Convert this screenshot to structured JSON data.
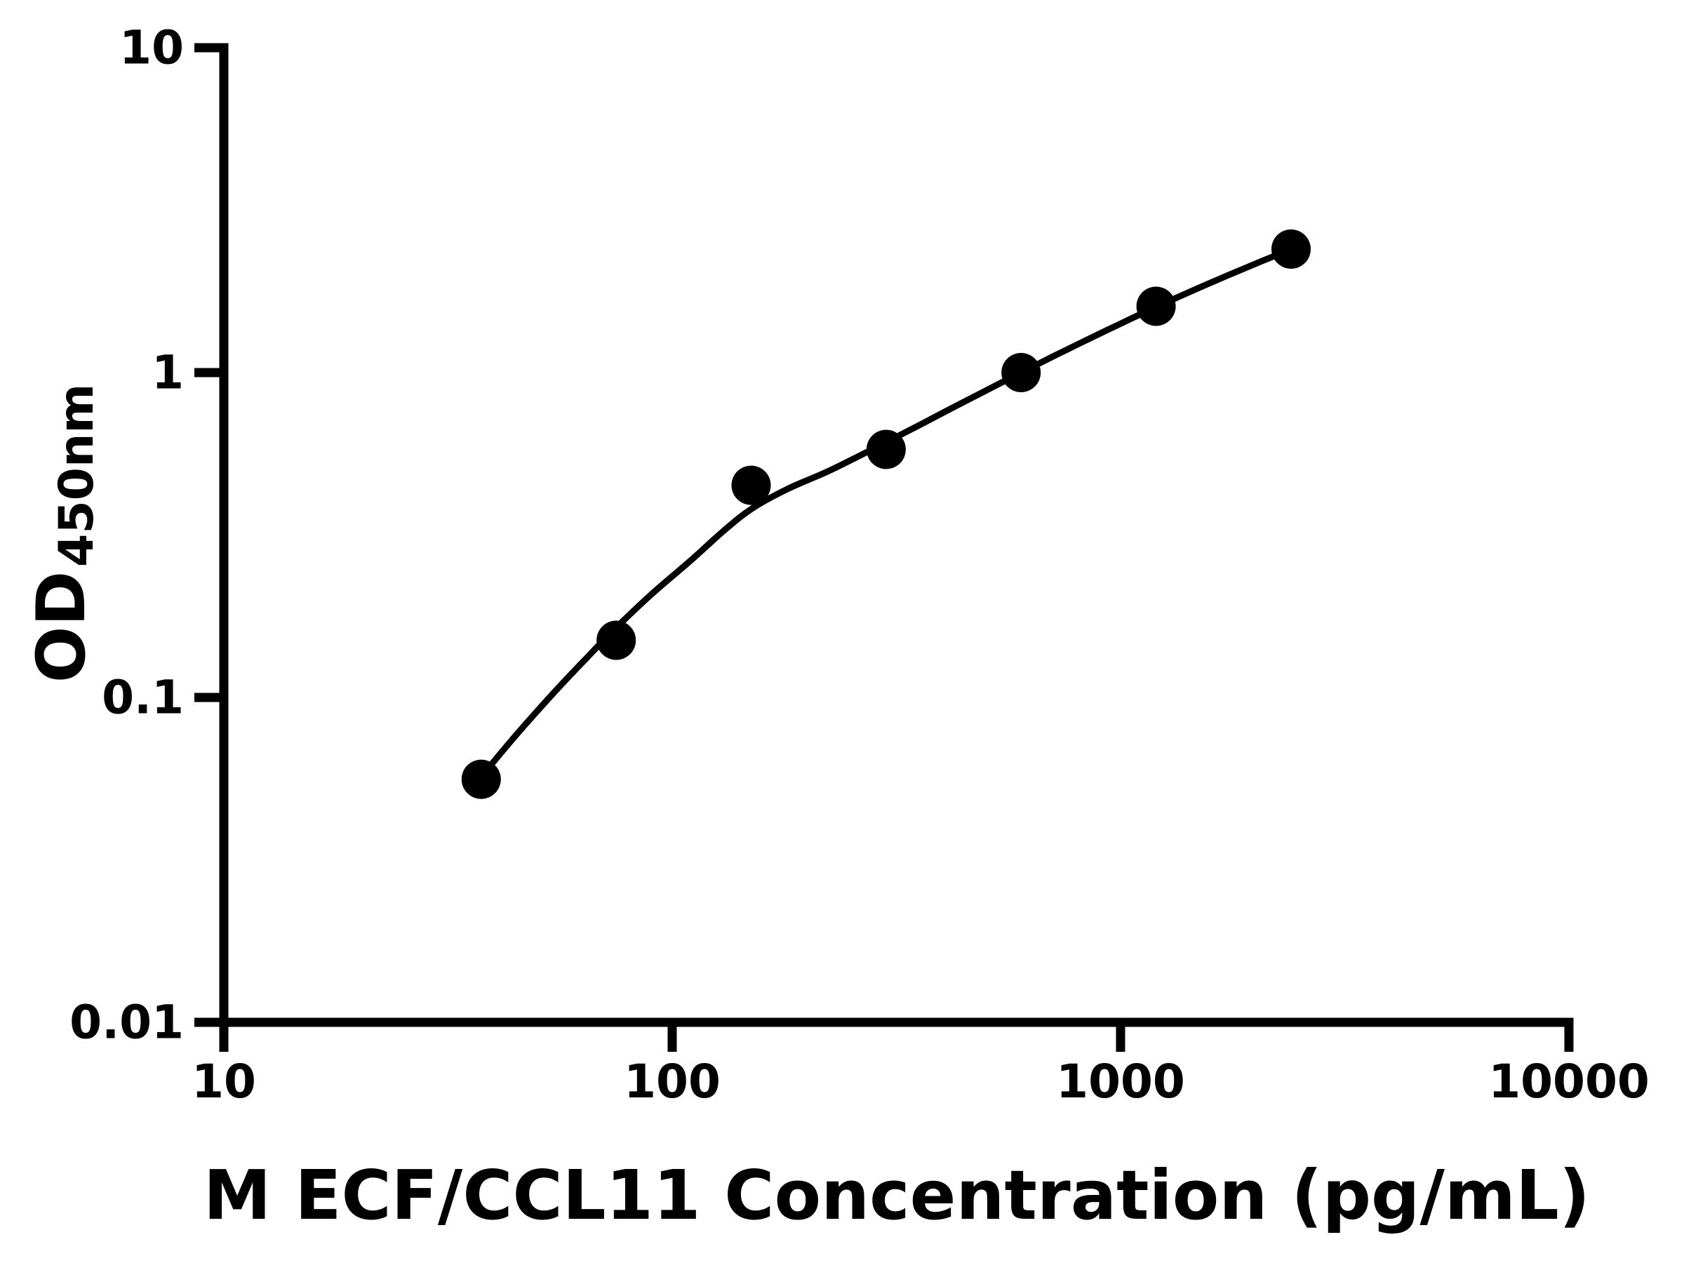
{
  "chart_data": {
    "type": "scatter",
    "title": "",
    "xlabel": "M ECF/CCL11 Concentration (pg/mL)",
    "ylabel_main": "OD",
    "ylabel_sub": "450nm",
    "x_scale": "log",
    "y_scale": "log",
    "xlim": [
      10,
      10000
    ],
    "ylim": [
      0.01,
      10
    ],
    "grid": false,
    "legend": "none",
    "x_ticks": [
      {
        "value": 10,
        "label": "10"
      },
      {
        "value": 100,
        "label": "100"
      },
      {
        "value": 1000,
        "label": "1000"
      },
      {
        "value": 10000,
        "label": "10000"
      }
    ],
    "y_ticks": [
      {
        "value": 10,
        "label": "10"
      },
      {
        "value": 1,
        "label": "1"
      },
      {
        "value": 0.1,
        "label": "0.1"
      },
      {
        "value": 0.01,
        "label": "0.01"
      }
    ],
    "series": [
      {
        "name": "standard-points",
        "marker": "filled-circle",
        "color": "#000000",
        "points": [
          {
            "x": 37.5,
            "y": 0.056
          },
          {
            "x": 75,
            "y": 0.15
          },
          {
            "x": 150,
            "y": 0.45
          },
          {
            "x": 300,
            "y": 0.58
          },
          {
            "x": 600,
            "y": 1.0
          },
          {
            "x": 1200,
            "y": 1.6
          },
          {
            "x": 2400,
            "y": 2.4
          }
        ]
      }
    ],
    "fit_curve": {
      "name": "four-parameter-fit",
      "color": "#000000",
      "samples": [
        [
          37.5,
          0.057
        ],
        [
          45,
          0.077
        ],
        [
          55,
          0.105
        ],
        [
          65,
          0.134
        ],
        [
          75,
          0.164
        ],
        [
          90,
          0.208
        ],
        [
          110,
          0.264
        ],
        [
          130,
          0.325
        ],
        [
          150,
          0.38
        ],
        [
          180,
          0.437
        ],
        [
          220,
          0.493
        ],
        [
          260,
          0.552
        ],
        [
          300,
          0.61
        ],
        [
          360,
          0.695
        ],
        [
          430,
          0.79
        ],
        [
          520,
          0.904
        ],
        [
          600,
          1.0
        ],
        [
          720,
          1.135
        ],
        [
          860,
          1.28
        ],
        [
          1030,
          1.442
        ],
        [
          1200,
          1.592
        ],
        [
          1450,
          1.789
        ],
        [
          1750,
          2.002
        ],
        [
          2070,
          2.206
        ],
        [
          2400,
          2.396
        ]
      ]
    }
  },
  "colors": {
    "background": "#ffffff",
    "foreground": "#000000"
  }
}
